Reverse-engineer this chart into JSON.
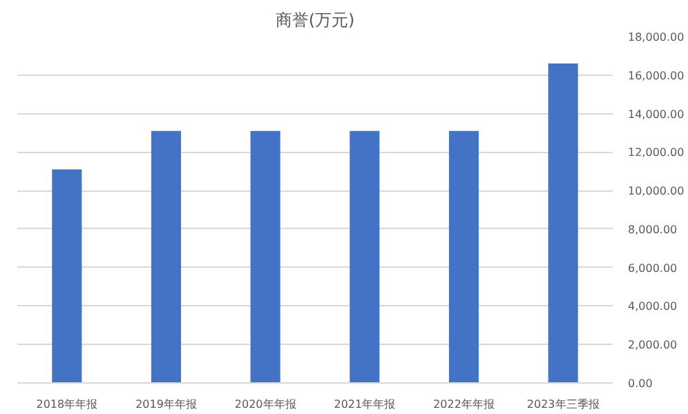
{
  "chart_data": {
    "type": "bar",
    "title": "商誉(万元)",
    "categories": [
      "2018年年报",
      "2019年年报",
      "2020年年报",
      "2021年年报",
      "2022年年报",
      "2023年三季报"
    ],
    "values": [
      11100,
      13100,
      13100,
      13100,
      13100,
      16600
    ],
    "color": "#4472c4",
    "ylim": [
      0,
      18000
    ],
    "yticks": [
      {
        "value": 0,
        "label": "0.00"
      },
      {
        "value": 2000,
        "label": "2,000.00"
      },
      {
        "value": 4000,
        "label": "4,000.00"
      },
      {
        "value": 6000,
        "label": "6,000.00"
      },
      {
        "value": 8000,
        "label": "8,000.00"
      },
      {
        "value": 10000,
        "label": "10,000.00"
      },
      {
        "value": 12000,
        "label": "12,000.00"
      },
      {
        "value": 14000,
        "label": "14,000.00"
      },
      {
        "value": 16000,
        "label": "16,000.00"
      },
      {
        "value": 18000,
        "label": "18,000.00"
      }
    ],
    "grid": "y"
  }
}
